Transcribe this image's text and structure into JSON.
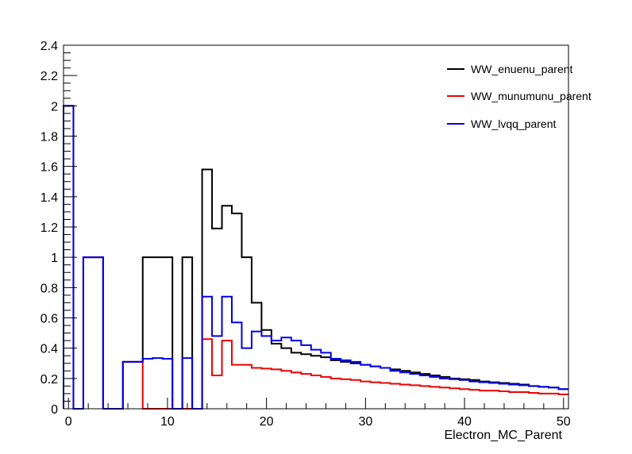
{
  "chart_data": {
    "type": "line",
    "title": "",
    "xlabel": "Electron_MC_Parent",
    "ylabel": "",
    "xlim": [
      -0.5,
      50.5
    ],
    "ylim": [
      0,
      2.4
    ],
    "grid": false,
    "legend_position": "top-right",
    "x_bin_edges": [
      -0.5,
      0.5,
      1.5,
      2.5,
      3.5,
      4.5,
      5.5,
      6.5,
      7.5,
      8.5,
      9.5,
      10.5,
      11.5,
      12.5,
      13.5,
      14.5,
      15.5,
      16.5,
      17.5,
      18.5,
      19.5,
      20.5,
      21.5,
      22.5,
      23.5,
      24.5,
      25.5,
      26.5,
      27.5,
      28.5,
      29.5,
      30.5,
      31.5,
      32.5,
      33.5,
      34.5,
      35.5,
      36.5,
      37.5,
      38.5,
      39.5,
      40.5,
      41.5,
      42.5,
      43.5,
      44.5,
      45.5,
      46.5,
      47.5,
      48.5,
      49.5,
      50.5
    ],
    "x_ticks": [
      0,
      10,
      20,
      30,
      40,
      50
    ],
    "x_tick_labels": [
      "0",
      "10",
      "20",
      "30",
      "40",
      "50"
    ],
    "y_ticks": [
      0,
      0.2,
      0.4,
      0.6,
      0.8,
      1,
      1.2,
      1.4,
      1.6,
      1.8,
      2,
      2.2,
      2.4
    ],
    "y_tick_labels": [
      "0",
      "0.2",
      "0.4",
      "0.6",
      "0.8",
      "1",
      "1.2",
      "1.4",
      "1.6",
      "1.8",
      "2",
      "2.2",
      "2.4"
    ],
    "series": [
      {
        "name": "WW_enuenu_parent",
        "color": "#000000",
        "values": [
          2.0,
          0,
          1.0,
          1.0,
          0,
          0,
          0.31,
          0.31,
          1.0,
          1.0,
          1.0,
          0,
          1.0,
          0,
          1.58,
          1.19,
          1.34,
          1.29,
          1.0,
          0.7,
          0.52,
          0.43,
          0.4,
          0.37,
          0.36,
          0.35,
          0.34,
          0.32,
          0.31,
          0.3,
          0.29,
          0.28,
          0.27,
          0.26,
          0.25,
          0.24,
          0.23,
          0.22,
          0.21,
          0.2,
          0.195,
          0.19,
          0.18,
          0.175,
          0.17,
          0.165,
          0.16,
          0.15,
          0.145,
          0.14,
          0.13
        ]
      },
      {
        "name": "WW_munumunu_parent",
        "color": "#ee0000",
        "values": [
          2.0,
          0,
          1.0,
          1.0,
          0,
          0,
          0.31,
          0.31,
          0,
          0,
          0,
          0,
          0,
          0,
          0.46,
          0.22,
          0.45,
          0.29,
          0.29,
          0.27,
          0.265,
          0.26,
          0.25,
          0.24,
          0.23,
          0.22,
          0.21,
          0.2,
          0.195,
          0.19,
          0.18,
          0.175,
          0.17,
          0.165,
          0.16,
          0.155,
          0.15,
          0.145,
          0.14,
          0.135,
          0.13,
          0.125,
          0.12,
          0.12,
          0.115,
          0.11,
          0.11,
          0.105,
          0.1,
          0.1,
          0.095
        ]
      },
      {
        "name": "WW_lvqq_parent",
        "color": "#0000ee",
        "values": [
          2.0,
          0,
          1.0,
          1.0,
          0,
          0,
          0.31,
          0.31,
          0.33,
          0.335,
          0.33,
          0,
          0.335,
          0,
          0.74,
          0.48,
          0.74,
          0.57,
          0.4,
          0.51,
          0.48,
          0.45,
          0.47,
          0.45,
          0.42,
          0.39,
          0.37,
          0.33,
          0.32,
          0.31,
          0.29,
          0.28,
          0.27,
          0.25,
          0.24,
          0.23,
          0.22,
          0.21,
          0.2,
          0.195,
          0.19,
          0.18,
          0.175,
          0.17,
          0.165,
          0.16,
          0.155,
          0.15,
          0.145,
          0.14,
          0.13
        ]
      }
    ]
  }
}
